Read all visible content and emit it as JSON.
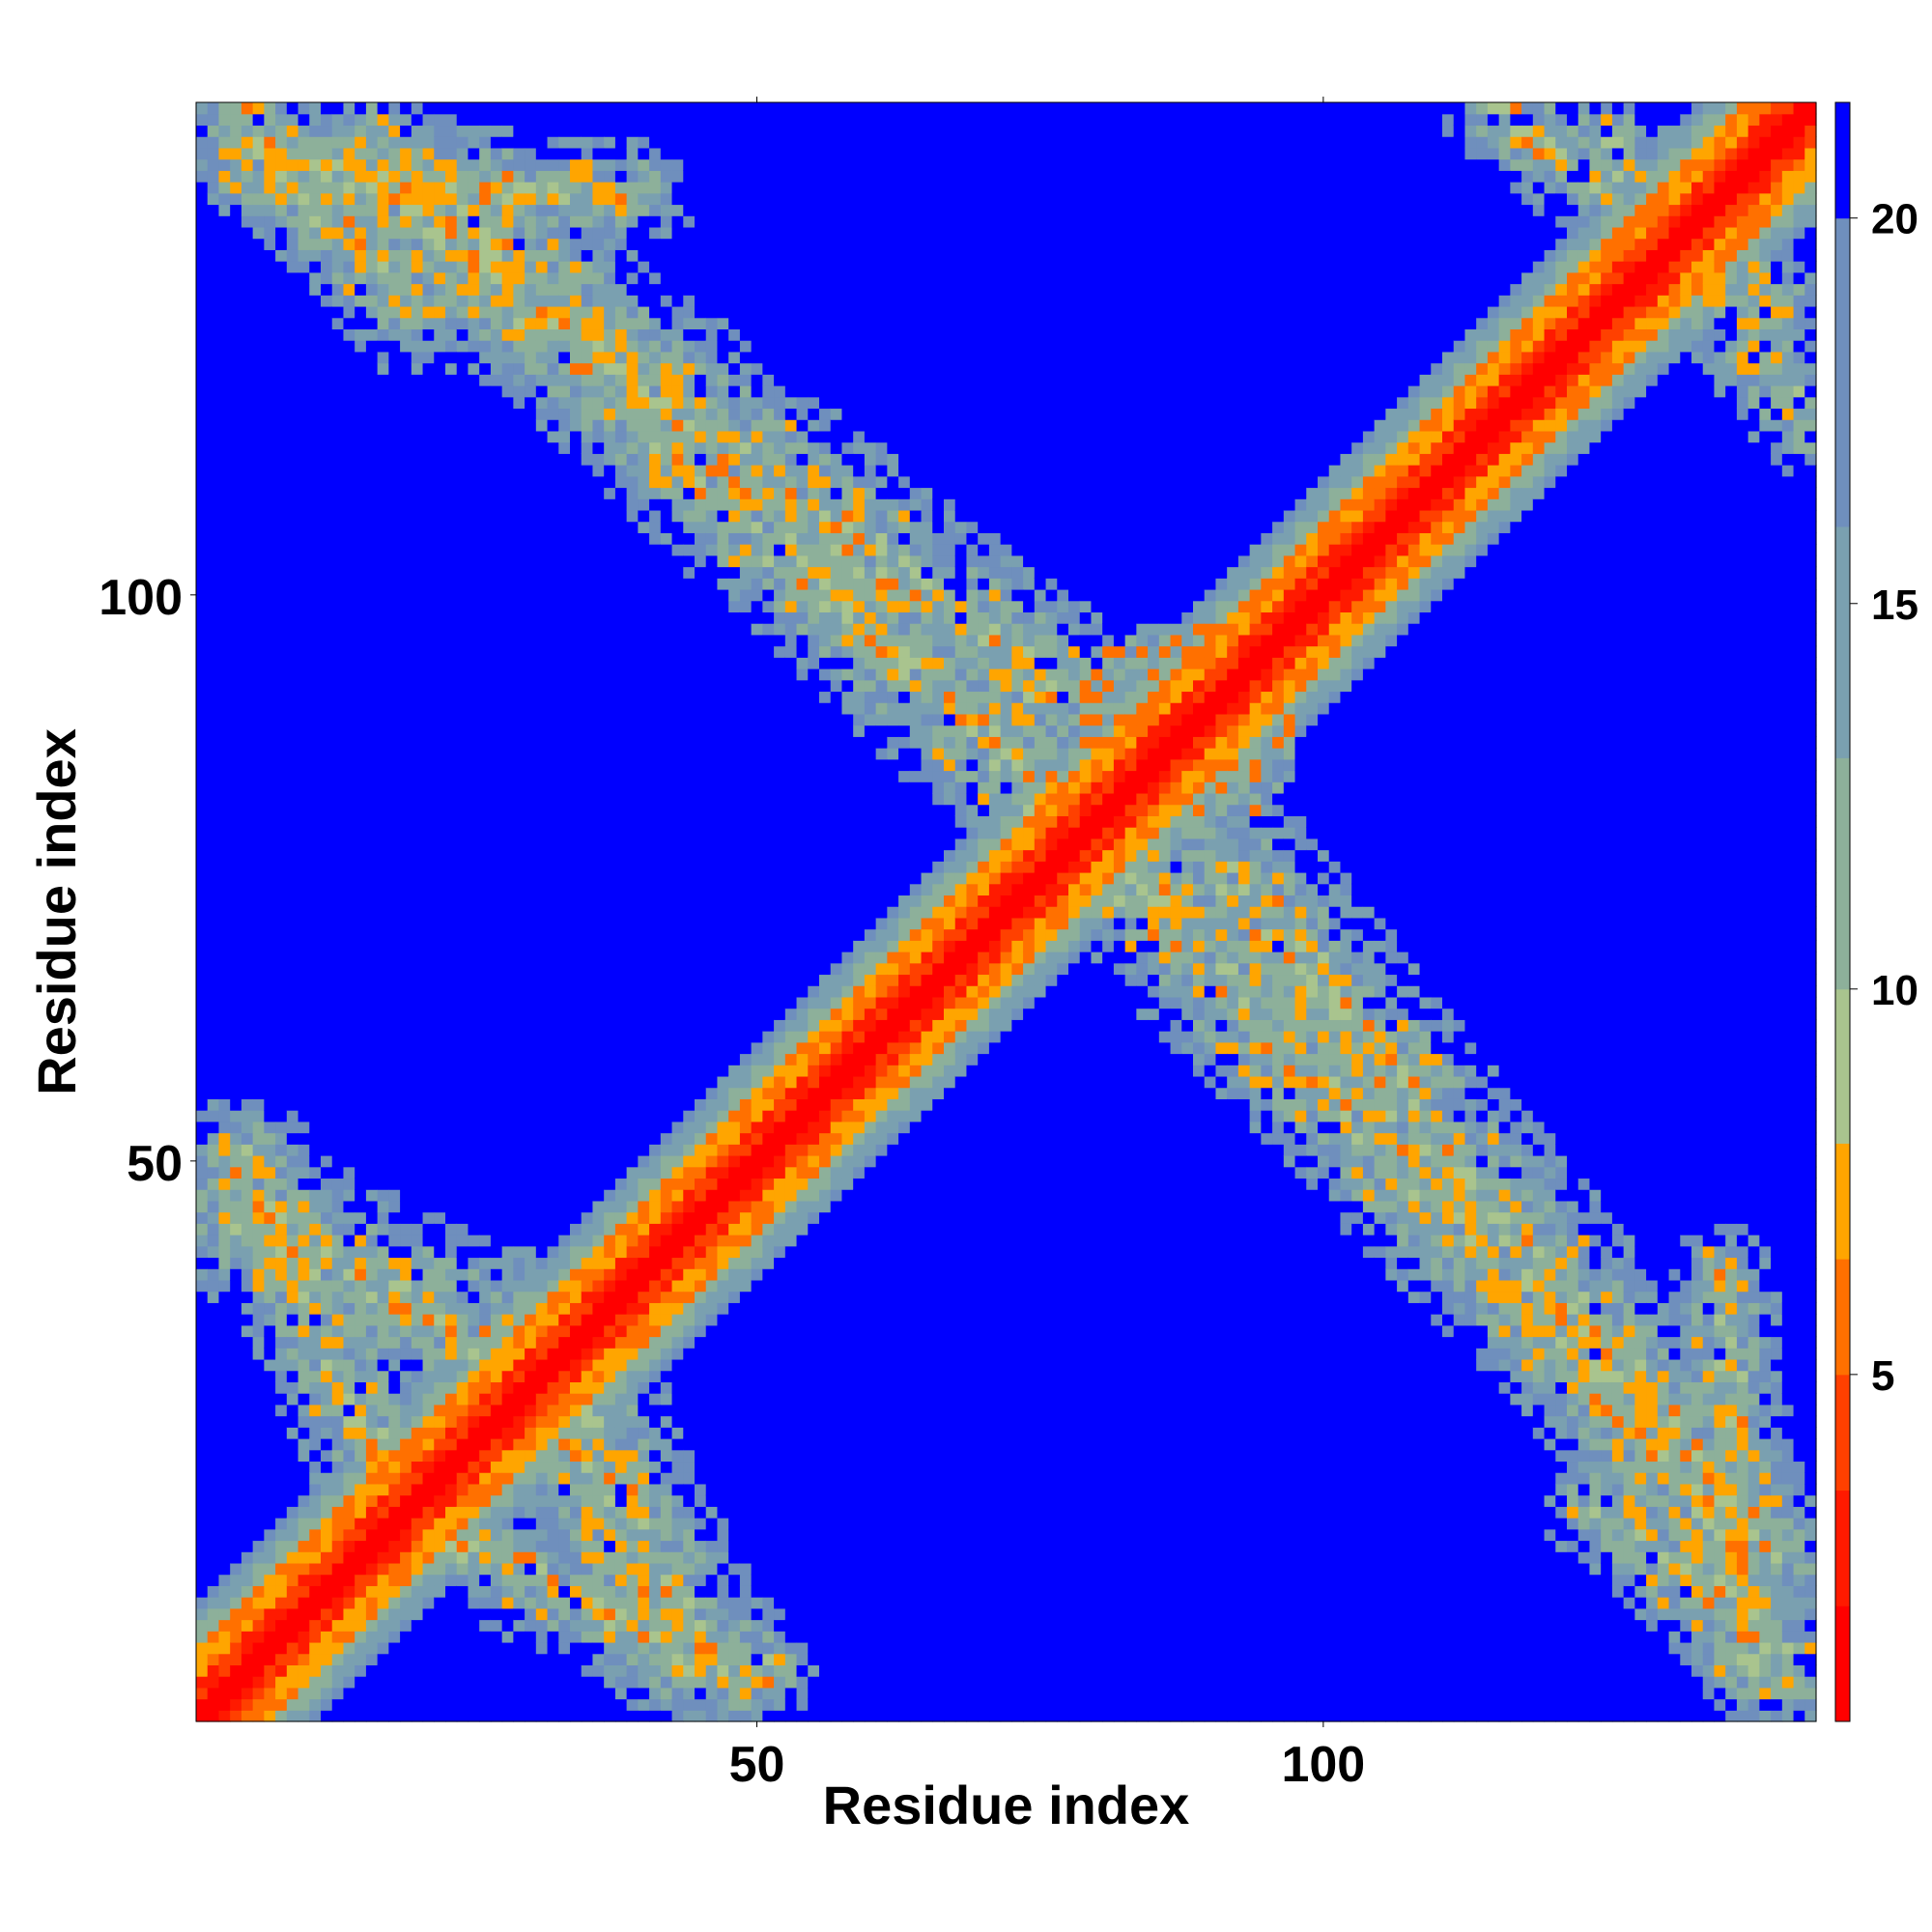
{
  "chart_data": {
    "type": "heatmap",
    "title": "",
    "xlabel": "Residue index",
    "ylabel": "Residue index",
    "n_residues": 143,
    "xlim": [
      1,
      143
    ],
    "ylim": [
      1,
      143
    ],
    "x_ticks": [
      50,
      100
    ],
    "y_ticks": [
      50,
      100
    ],
    "value_range": [
      0.5,
      21.5
    ],
    "colorbar_ticks": [
      5,
      10,
      15,
      20
    ],
    "color_levels": [
      {
        "max": 2,
        "color": "#ff0000"
      },
      {
        "max": 3.5,
        "color": "#ff1a00"
      },
      {
        "max": 5,
        "color": "#ff4000"
      },
      {
        "max": 6.5,
        "color": "#ff7000"
      },
      {
        "max": 8,
        "color": "#ffa500"
      },
      {
        "max": 10,
        "color": "#a9c48e"
      },
      {
        "max": 13,
        "color": "#8db09a"
      },
      {
        "max": 16,
        "color": "#7aa0b0"
      },
      {
        "max": 20,
        "color": "#6f8fbd"
      },
      {
        "max": 99,
        "color": "#0000ff"
      }
    ],
    "grid": false,
    "legend": "colorbar-right",
    "description_of_values": "pairwise residue distance map; diagonal band of short distances (red/orange ~1-8), broad contact bands along the anti-diagonal regions (green/blue-grey ~9-20), background beyond cutoff (blue ~21)",
    "features": [
      {
        "kind": "diagonal",
        "from": [
          1,
          1
        ],
        "to": [
          143,
          143
        ],
        "core": 1,
        "width": 5
      },
      {
        "kind": "band",
        "from": [
          15,
          139
        ],
        "to": [
          88,
          70
        ],
        "width": 7
      },
      {
        "kind": "band",
        "from": [
          92,
          75
        ],
        "to": [
          135,
          20
        ],
        "width": 8
      },
      {
        "kind": "band",
        "from": [
          5,
          45
        ],
        "to": [
          35,
          30
        ],
        "width": 8
      },
      {
        "kind": "band",
        "from": [
          20,
          18
        ],
        "to": [
          50,
          5
        ],
        "width": 6
      },
      {
        "kind": "band",
        "from": [
          125,
          20
        ],
        "to": [
          142,
          5
        ],
        "width": 6
      },
      {
        "kind": "band",
        "from": [
          125,
          140
        ],
        "to": [
          143,
          115
        ],
        "width": 5
      },
      {
        "kind": "band",
        "from": [
          5,
          138
        ],
        "to": [
          40,
          135
        ],
        "width": 5
      }
    ]
  }
}
